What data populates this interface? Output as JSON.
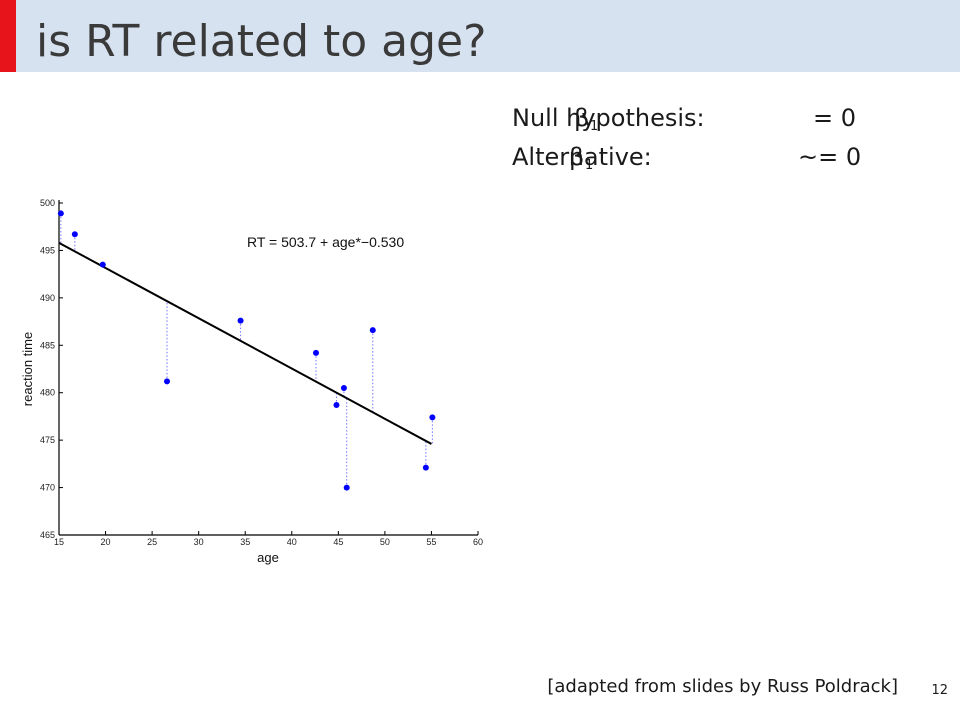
{
  "header": {
    "title": "is RT related to age?"
  },
  "hypotheses": [
    {
      "label": "Null hypothesis:",
      "symbol": "β",
      "subscript": "1",
      "relation": "= 0"
    },
    {
      "label": "Alternative:",
      "symbol": "β",
      "subscript": "1",
      "relation": "~= 0"
    }
  ],
  "chart_data": {
    "type": "scatter",
    "annotation": "RT = 503.7 + age*−0.530",
    "xlabel": "age",
    "ylabel": "reaction time",
    "x": [
      15.2,
      16.7,
      19.7,
      26.6,
      34.5,
      42.6,
      44.8,
      45.6,
      45.9,
      48.7,
      54.4,
      55.1
    ],
    "values": [
      498.9,
      496.7,
      493.5,
      481.2,
      487.6,
      484.2,
      478.7,
      480.5,
      470.0,
      486.6,
      472.1,
      477.4
    ],
    "color": "#0000ff",
    "fit_line": {
      "x": [
        15,
        55
      ],
      "values": [
        495.8,
        474.6
      ],
      "color": "#000000"
    },
    "xlim": [
      15,
      60
    ],
    "ylim": [
      465,
      500
    ],
    "xticks": [
      15,
      20,
      25,
      30,
      35,
      40,
      45,
      50,
      55,
      60
    ],
    "yticks": [
      465,
      470,
      475,
      480,
      485,
      490,
      495,
      500
    ]
  },
  "footer": {
    "source": "[adapted from slides by Russ Poldrack]",
    "page": "12"
  }
}
